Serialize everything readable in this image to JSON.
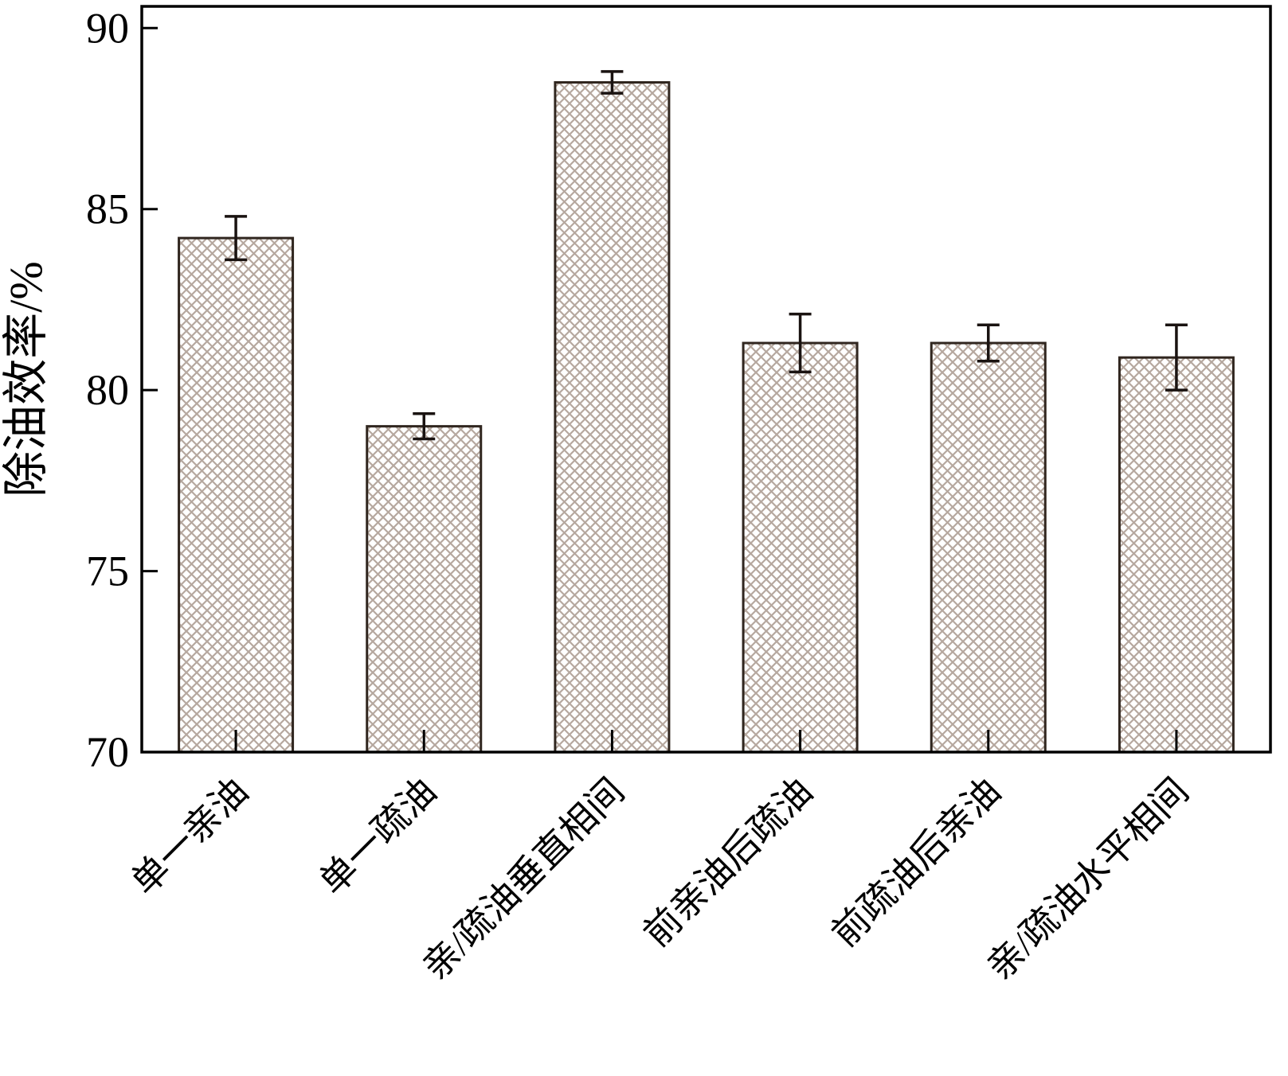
{
  "chart_data": {
    "type": "bar",
    "title": "",
    "xlabel": "",
    "ylabel": "除油效率/%",
    "ylim": [
      70,
      90
    ],
    "yticks": [
      70,
      75,
      80,
      85,
      90
    ],
    "categories": [
      "单一亲油",
      "单一疏油",
      "亲/疏油垂直相间",
      "前亲油后疏油",
      "前疏油后亲油",
      "亲/疏油水平相间"
    ],
    "values": [
      84.2,
      79.0,
      88.5,
      81.3,
      81.3,
      80.9
    ],
    "errors": [
      0.6,
      0.35,
      0.3,
      0.8,
      0.5,
      0.9
    ],
    "grid": false,
    "legend": "none",
    "bar_style": "crosshatch",
    "colors": {
      "hatch": "#b6a89f",
      "bar_edge": "#30261f",
      "axis": "#000000",
      "error_bar": "#1a1311",
      "background": "#ffffff"
    }
  }
}
